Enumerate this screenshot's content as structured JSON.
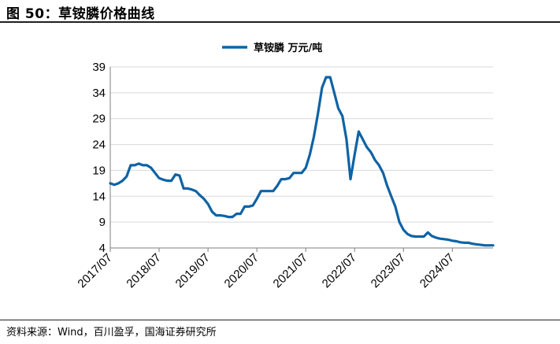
{
  "figure": {
    "title": "图 50：草铵膦价格曲线",
    "source": "资料来源：Wind，百川盈孚，国海证券研究所"
  },
  "colors": {
    "series": "#0e63a5",
    "axis": "#7f7f7f",
    "grid": "#d9d9d9"
  },
  "chart_data": {
    "type": "line",
    "title": "",
    "xlabel": "",
    "ylabel": "",
    "ylim": [
      4,
      39
    ],
    "yticks": [
      4,
      9,
      14,
      19,
      24,
      29,
      34,
      39
    ],
    "grid": "horizontal",
    "legend_position": "top-center",
    "xticks": [
      "2017/07",
      "2018/07",
      "2019/07",
      "2020/07",
      "2021/07",
      "2022/07",
      "2023/07",
      "2024/07"
    ],
    "x_range": [
      "2017-07",
      "2025-05"
    ],
    "series": [
      {
        "name": "草铵膦 万元/吨",
        "x": [
          "2017-07",
          "2017-08",
          "2017-09",
          "2017-10",
          "2017-11",
          "2017-12",
          "2018-01",
          "2018-02",
          "2018-03",
          "2018-04",
          "2018-05",
          "2018-06",
          "2018-07",
          "2018-08",
          "2018-09",
          "2018-10",
          "2018-11",
          "2018-12",
          "2019-01",
          "2019-02",
          "2019-03",
          "2019-04",
          "2019-05",
          "2019-06",
          "2019-07",
          "2019-08",
          "2019-09",
          "2019-10",
          "2019-11",
          "2019-12",
          "2020-01",
          "2020-02",
          "2020-03",
          "2020-04",
          "2020-05",
          "2020-06",
          "2020-07",
          "2020-08",
          "2020-09",
          "2020-10",
          "2020-11",
          "2020-12",
          "2021-01",
          "2021-02",
          "2021-03",
          "2021-04",
          "2021-05",
          "2021-06",
          "2021-07",
          "2021-08",
          "2021-09",
          "2021-10",
          "2021-11",
          "2021-12",
          "2022-01",
          "2022-02",
          "2022-03",
          "2022-04",
          "2022-05",
          "2022-06",
          "2022-07",
          "2022-08",
          "2022-09",
          "2022-10",
          "2022-11",
          "2022-12",
          "2023-01",
          "2023-02",
          "2023-03",
          "2023-04",
          "2023-05",
          "2023-06",
          "2023-07",
          "2023-08",
          "2023-09",
          "2023-10",
          "2023-11",
          "2023-12",
          "2024-01",
          "2024-02",
          "2024-03",
          "2024-04",
          "2024-05",
          "2024-06",
          "2024-07",
          "2024-08",
          "2024-09",
          "2024-10",
          "2024-11",
          "2024-12",
          "2025-01",
          "2025-02",
          "2025-03",
          "2025-04",
          "2025-05"
        ],
        "values": [
          16.5,
          16.2,
          16.5,
          17.0,
          17.8,
          20.0,
          20.0,
          20.3,
          20.0,
          20.0,
          19.5,
          18.5,
          17.5,
          17.2,
          17.0,
          17.0,
          18.2,
          18.0,
          15.5,
          15.5,
          15.3,
          15.0,
          14.2,
          13.5,
          12.5,
          11.0,
          10.3,
          10.3,
          10.2,
          10.0,
          10.0,
          10.6,
          10.6,
          12.0,
          12.0,
          12.2,
          13.5,
          15.0,
          15.0,
          15.0,
          15.0,
          16.0,
          17.3,
          17.3,
          17.5,
          18.5,
          18.5,
          18.5,
          19.5,
          22.0,
          25.5,
          30.0,
          35.0,
          37.0,
          37.0,
          34.0,
          31.0,
          29.5,
          25.0,
          17.3,
          22.0,
          26.5,
          25.0,
          23.5,
          22.5,
          21.0,
          20.0,
          18.5,
          16.0,
          14.0,
          12.0,
          9.0,
          7.5,
          6.7,
          6.3,
          6.2,
          6.2,
          6.2,
          7.0,
          6.3,
          6.0,
          5.8,
          5.7,
          5.6,
          5.4,
          5.3,
          5.1,
          5.0,
          5.0,
          4.8,
          4.7,
          4.6,
          4.5,
          4.5,
          4.5
        ]
      }
    ]
  }
}
